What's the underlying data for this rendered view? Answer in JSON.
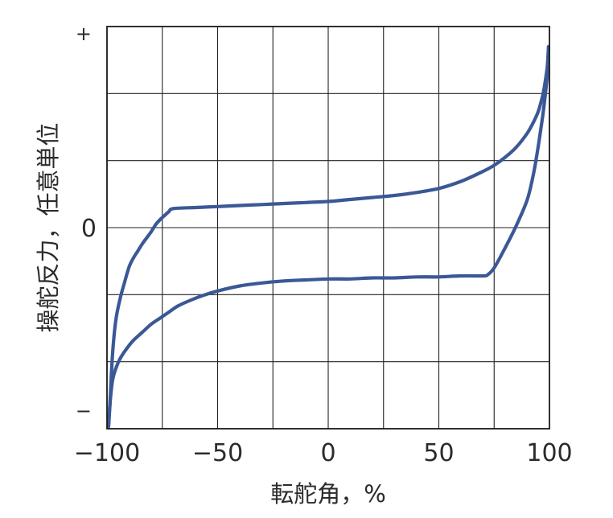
{
  "chart_data": {
    "type": "line",
    "title": "",
    "xlabel": "転舵角，%",
    "ylabel": "操舵反力，任意単位",
    "xlim": [
      -100,
      100
    ],
    "ylim": [
      -1,
      1
    ],
    "x_ticks": [
      -100,
      -50,
      0,
      50,
      100
    ],
    "x_tick_labels": [
      "−100",
      "−50",
      "0",
      "50",
      "100"
    ],
    "y_ticks": [
      -1,
      0,
      1
    ],
    "y_tick_labels": [
      "−",
      "0",
      "+"
    ],
    "grid": true,
    "series_color": "#3b5896",
    "series": [
      {
        "x": [
          -99.3,
          -98.5,
          -97.5,
          -96,
          -94,
          -92,
          -90,
          -88,
          -86,
          -84,
          -82,
          -80,
          -78,
          -76,
          -74,
          -72,
          -70,
          -60,
          -50,
          -40,
          -30,
          -20,
          -10,
          0,
          10,
          20,
          30,
          40,
          50,
          60,
          70,
          75,
          80,
          85,
          90,
          93,
          95,
          97,
          98,
          99,
          99.6
        ],
        "y": [
          -0.99,
          -0.84,
          -0.63,
          -0.46,
          -0.35,
          -0.27,
          -0.195,
          -0.15,
          -0.115,
          -0.08,
          -0.05,
          -0.02,
          0.015,
          0.04,
          0.06,
          0.08,
          0.095,
          0.1,
          0.105,
          0.11,
          0.115,
          0.12,
          0.125,
          0.13,
          0.14,
          0.15,
          0.16,
          0.175,
          0.195,
          0.23,
          0.28,
          0.31,
          0.35,
          0.4,
          0.47,
          0.53,
          0.58,
          0.66,
          0.72,
          0.8,
          0.9
        ]
      },
      {
        "x": [
          -99.3,
          -98.5,
          -97.5,
          -96,
          -94,
          -91,
          -88,
          -84,
          -80,
          -76,
          -72,
          -68,
          -62,
          -56,
          -50,
          -40,
          -30,
          -20,
          -10,
          0,
          10,
          20,
          30,
          40,
          50,
          60,
          70,
          72,
          75,
          80,
          85,
          90,
          93,
          95,
          97,
          98,
          99,
          99.6
        ],
        "y": [
          -0.99,
          -0.86,
          -0.76,
          -0.7,
          -0.65,
          -0.6,
          -0.56,
          -0.52,
          -0.48,
          -0.45,
          -0.42,
          -0.39,
          -0.36,
          -0.335,
          -0.315,
          -0.29,
          -0.275,
          -0.265,
          -0.26,
          -0.255,
          -0.255,
          -0.25,
          -0.25,
          -0.245,
          -0.245,
          -0.24,
          -0.24,
          -0.235,
          -0.2,
          -0.1,
          0.01,
          0.14,
          0.28,
          0.41,
          0.56,
          0.65,
          0.76,
          0.9
        ]
      }
    ]
  }
}
